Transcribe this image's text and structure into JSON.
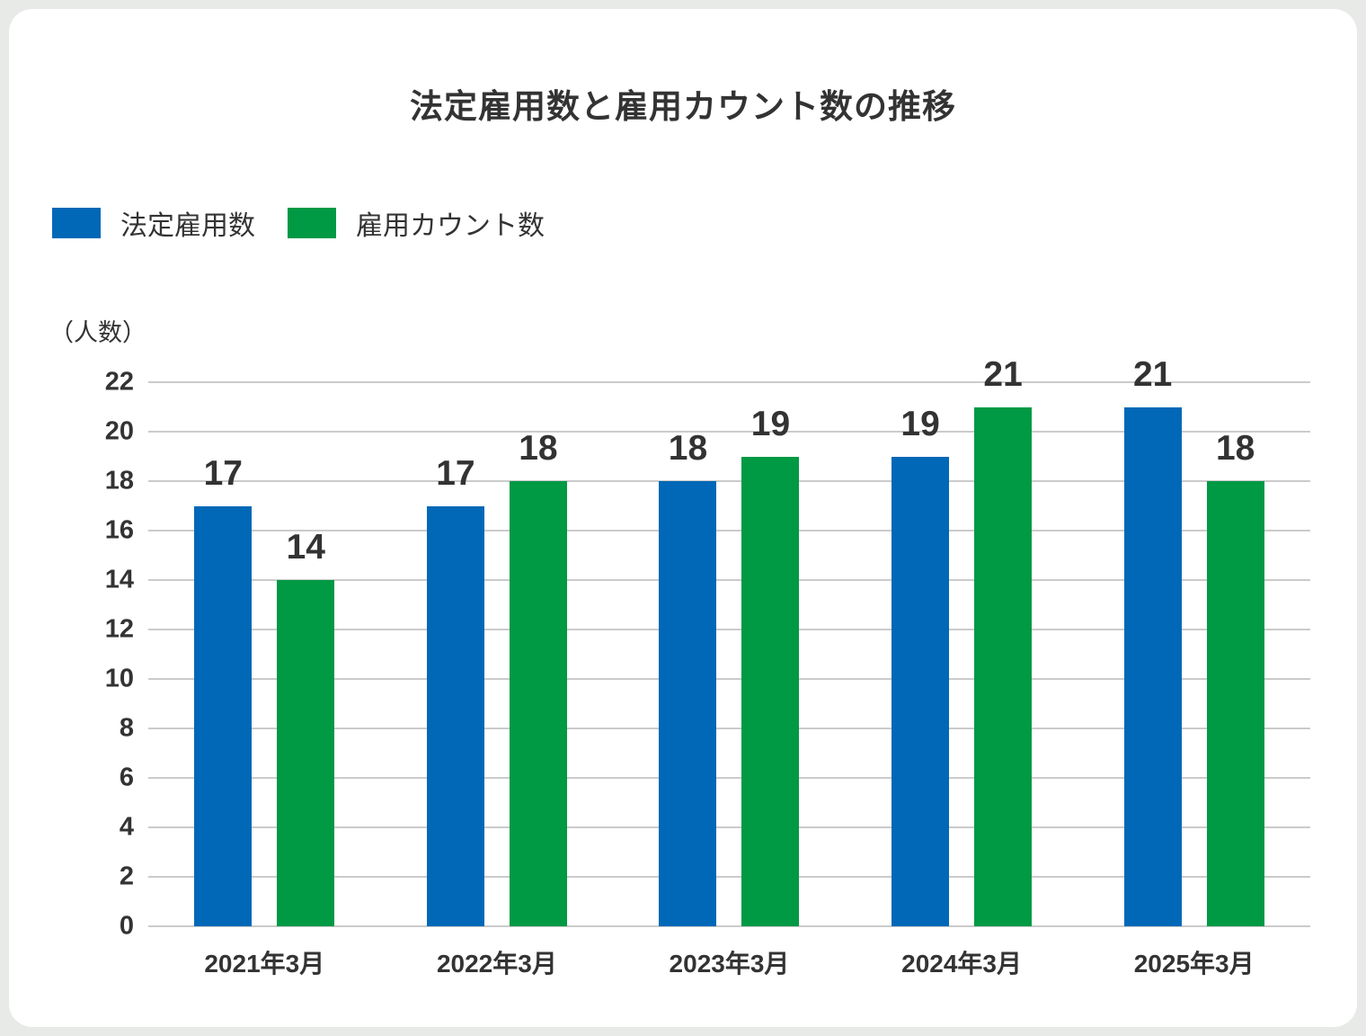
{
  "page": {
    "background_color": "#e8eae8",
    "card_color": "#ffffff",
    "text_color": "#333333",
    "gridline_color": "#cbcbcb"
  },
  "title": "法定雇用数と雇用カウント数の推移",
  "unit_label": "（人数）",
  "legend": [
    {
      "label": "法定雇用数",
      "color": "#0068b7"
    },
    {
      "label": "雇用カウント数",
      "color": "#009944"
    }
  ],
  "chart_data": {
    "type": "bar",
    "title": "法定雇用数と雇用カウント数の推移",
    "categories": [
      "2021年3月",
      "2022年3月",
      "2023年3月",
      "2024年3月",
      "2025年3月"
    ],
    "series": [
      {
        "name": "法定雇用数",
        "color": "#0068b7",
        "values": [
          17,
          17,
          18,
          19,
          21
        ]
      },
      {
        "name": "雇用カウント数",
        "color": "#009944",
        "values": [
          14,
          18,
          19,
          21,
          18
        ]
      }
    ],
    "xlabel": "",
    "ylabel": "（人数）",
    "ylim": [
      0,
      22
    ],
    "ytick_step": 2,
    "grid": true,
    "legend_position": "top-left",
    "bar_value_labels": true
  }
}
